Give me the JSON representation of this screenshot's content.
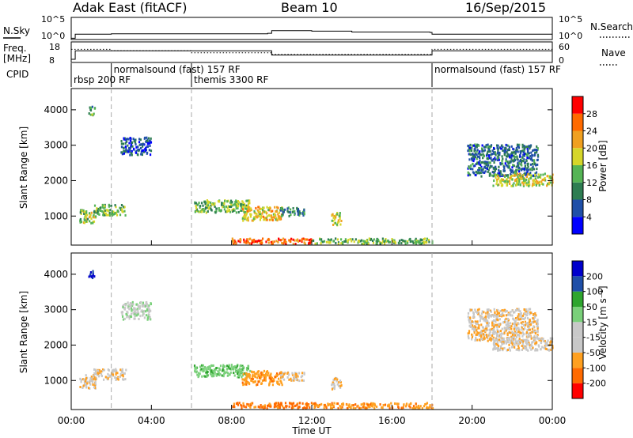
{
  "header": {
    "radar": "Adak East (fitACF)",
    "beam": "Beam 10",
    "date": "16/Sep/2015"
  },
  "noise_panel": {
    "left_label": "N.Sky",
    "right_label": "N.Search",
    "left_ticks": [
      "10^5",
      "10^0"
    ],
    "right_ticks": [
      "10^5",
      "10^0"
    ]
  },
  "freq_panel": {
    "left_label_1": "Freq.",
    "left_label_2": "[MHz]",
    "right_label": "Nave",
    "left_ticks": [
      "18",
      "8"
    ],
    "right_ticks": [
      "60",
      "0"
    ]
  },
  "cpid": {
    "label": "CPID",
    "segments": [
      {
        "start_h": 0.0,
        "text": "rbsp 200 RF"
      },
      {
        "start_h": 2.0,
        "text": "normalsound (fast) 157 RF"
      },
      {
        "start_h": 6.0,
        "text": "themis 3300 RF"
      },
      {
        "start_h": 18.0,
        "text": "normalsound (fast) 157 RF"
      }
    ]
  },
  "power_panel": {
    "ylabel": "Slant Range [km]",
    "yticks": [
      "4000",
      "3000",
      "2000",
      "1000"
    ],
    "colorbar_title": "Power [dB]",
    "colorbar_ticks": [
      "28",
      "24",
      "20",
      "16",
      "12",
      "8",
      "4"
    ]
  },
  "velocity_panel": {
    "ylabel": "Slant Range [km]",
    "yticks": [
      "4000",
      "3000",
      "2000",
      "1000"
    ],
    "colorbar_title": "Velocity [m s⁻¹]",
    "colorbar_ticks": [
      "200",
      "100",
      "50",
      "15",
      "-15",
      "-50",
      "-100",
      "-200"
    ]
  },
  "xaxis": {
    "ticks": [
      "00:00",
      "04:00",
      "08:00",
      "12:00",
      "16:00",
      "20:00",
      "00:00"
    ],
    "label": "Time UT"
  },
  "colors": {
    "power_scale": [
      "#0000ff",
      "#1f4fa8",
      "#2e7d52",
      "#55b455",
      "#d6d62a",
      "#f0a020",
      "#ff6a00",
      "#ff0000"
    ],
    "velocity_scale": [
      "#ff0000",
      "#ff6a00",
      "#ffa020",
      "#c8c8c8",
      "#c8c8c8",
      "#7ad07a",
      "#2ea52e",
      "#1f4fa8",
      "#0000cc"
    ]
  },
  "chart_data": [
    {
      "type": "line",
      "title": "",
      "series": [
        {
          "name": "N.Sky",
          "x_hours": [
            0,
            0.2,
            2,
            6,
            9.8,
            10,
            12,
            14,
            17.9,
            18,
            20,
            24
          ],
          "values_log10": [
            0.3,
            1.2,
            1.3,
            1.3,
            1.4,
            2.0,
            1.9,
            1.7,
            1.6,
            1.2,
            1.2,
            1.2
          ]
        }
      ]
    },
    {
      "type": "line",
      "series": [
        {
          "name": "Freq.",
          "x_hours": [
            0,
            0.2,
            9.8,
            10,
            17.9,
            18,
            24
          ],
          "values_mhz": [
            8,
            14,
            14,
            11,
            11,
            14,
            14
          ]
        },
        {
          "name": "Nave",
          "x_hours": [
            0,
            2,
            6,
            10,
            18,
            24
          ],
          "values": [
            40,
            35,
            28,
            22,
            40,
            40
          ]
        }
      ]
    },
    {
      "type": "heatmap",
      "title": "",
      "xlabel": "Time UT",
      "ylabel": "Slant Range [km]",
      "x_range_hours": [
        0,
        24
      ],
      "y_range_km": [
        180,
        4600
      ],
      "blobs": [
        {
          "t": 0.8,
          "r": 1000,
          "w": 0.8,
          "h": 400,
          "power": 16,
          "velocity": -10
        },
        {
          "t": 1.9,
          "r": 1200,
          "w": 1.6,
          "h": 300,
          "power": 14,
          "velocity": -10
        },
        {
          "t": 7.5,
          "r": 1300,
          "w": 2.8,
          "h": 350,
          "power": 14,
          "velocity": 40
        },
        {
          "t": 9.5,
          "r": 1100,
          "w": 2.0,
          "h": 400,
          "power": 20,
          "velocity": -40
        },
        {
          "t": 11.0,
          "r": 1150,
          "w": 1.2,
          "h": 250,
          "power": 10,
          "velocity": -10
        },
        {
          "t": 13.2,
          "r": 950,
          "w": 0.5,
          "h": 350,
          "power": 18,
          "velocity": -10
        },
        {
          "t": 10.0,
          "r": 320,
          "w": 4.0,
          "h": 160,
          "power": 26,
          "velocity": -60
        },
        {
          "t": 15.0,
          "r": 320,
          "w": 6.0,
          "h": 150,
          "power": 14,
          "velocity": -40
        },
        {
          "t": 21.5,
          "r": 2600,
          "w": 3.5,
          "h": 900,
          "power": 8,
          "velocity": -10
        },
        {
          "t": 22.5,
          "r": 2050,
          "w": 3.0,
          "h": 350,
          "power": 18,
          "velocity": -5
        },
        {
          "t": 3.2,
          "r": 3000,
          "w": 1.5,
          "h": 500,
          "power": 6,
          "velocity": 10
        },
        {
          "t": 1.0,
          "r": 4000,
          "w": 0.3,
          "h": 250,
          "power": 12,
          "velocity": 200
        }
      ]
    }
  ]
}
